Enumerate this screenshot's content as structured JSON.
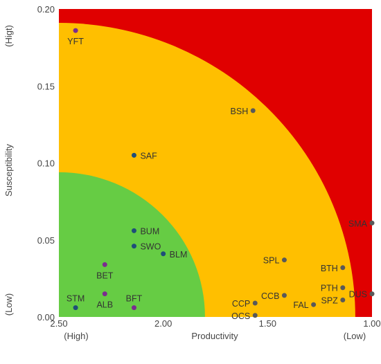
{
  "chart_data": {
    "type": "scatter",
    "xlabel": "Productivity",
    "ylabel": "Susceptibility",
    "x_end_labels": {
      "left": "(High)",
      "right": "(Low)"
    },
    "y_end_labels": {
      "bottom": "(Low)",
      "top": "(Higt)"
    },
    "xlim": [
      2.5,
      1.0
    ],
    "ylim": [
      0,
      0.2
    ],
    "x_ticks": [
      {
        "value": 2.5,
        "label": "2.50"
      },
      {
        "value": 2.0,
        "label": "2.00"
      },
      {
        "value": 1.5,
        "label": "1.50"
      },
      {
        "value": 1.0,
        "label": "1.00"
      }
    ],
    "y_ticks": [
      {
        "value": 0.0,
        "label": "0.00"
      },
      {
        "value": 0.05,
        "label": "0.05"
      },
      {
        "value": 0.1,
        "label": "0.10"
      },
      {
        "value": 0.15,
        "label": "0.15"
      },
      {
        "value": 0.2,
        "label": "0.20"
      }
    ],
    "zones": [
      {
        "name": "high",
        "color": "#e00000"
      },
      {
        "name": "medium",
        "color": "#ffbf00",
        "radius_x": 1.42,
        "radius_y": 0.191
      },
      {
        "name": "low",
        "color": "#66cc44",
        "radius_x": 0.7,
        "radius_y": 0.094
      }
    ],
    "points": [
      {
        "label": "YFT",
        "x": 2.42,
        "y": 0.186,
        "color": "#7b2d8e",
        "label_pos": "below"
      },
      {
        "label": "BSH",
        "x": 1.57,
        "y": 0.134,
        "color": "#595959",
        "label_pos": "left"
      },
      {
        "label": "SAF",
        "x": 2.14,
        "y": 0.105,
        "color": "#1f4e79",
        "label_pos": "right"
      },
      {
        "label": "BUM",
        "x": 2.14,
        "y": 0.056,
        "color": "#1f4e79",
        "label_pos": "right"
      },
      {
        "label": "SWO",
        "x": 2.14,
        "y": 0.046,
        "color": "#1f4e79",
        "label_pos": "right"
      },
      {
        "label": "BLM",
        "x": 2.0,
        "y": 0.041,
        "color": "#1f4e79",
        "label_pos": "right"
      },
      {
        "label": "BET",
        "x": 2.28,
        "y": 0.034,
        "color": "#7b2d8e",
        "label_pos": "below"
      },
      {
        "label": "ALB",
        "x": 2.28,
        "y": 0.015,
        "color": "#7b2d8e",
        "label_pos": "below"
      },
      {
        "label": "STM",
        "x": 2.42,
        "y": 0.006,
        "color": "#1f4e79",
        "label_pos": "above"
      },
      {
        "label": "BFT",
        "x": 2.14,
        "y": 0.006,
        "color": "#7b2d8e",
        "label_pos": "above"
      },
      {
        "label": "SMA",
        "x": 1.0,
        "y": 0.061,
        "color": "#595959",
        "label_pos": "left"
      },
      {
        "label": "SPL",
        "x": 1.42,
        "y": 0.037,
        "color": "#595959",
        "label_pos": "left"
      },
      {
        "label": "BTH",
        "x": 1.14,
        "y": 0.032,
        "color": "#595959",
        "label_pos": "left"
      },
      {
        "label": "PTH",
        "x": 1.14,
        "y": 0.019,
        "color": "#595959",
        "label_pos": "left"
      },
      {
        "label": "DUS",
        "x": 1.0,
        "y": 0.015,
        "color": "#595959",
        "label_pos": "left"
      },
      {
        "label": "CCB",
        "x": 1.42,
        "y": 0.014,
        "color": "#595959",
        "label_pos": "left"
      },
      {
        "label": "SPZ",
        "x": 1.14,
        "y": 0.011,
        "color": "#595959",
        "label_pos": "left"
      },
      {
        "label": "CCP",
        "x": 1.56,
        "y": 0.009,
        "color": "#595959",
        "label_pos": "left"
      },
      {
        "label": "FAL",
        "x": 1.28,
        "y": 0.008,
        "color": "#595959",
        "label_pos": "left"
      },
      {
        "label": "OCS",
        "x": 1.56,
        "y": 0.001,
        "color": "#595959",
        "label_pos": "left"
      }
    ]
  }
}
